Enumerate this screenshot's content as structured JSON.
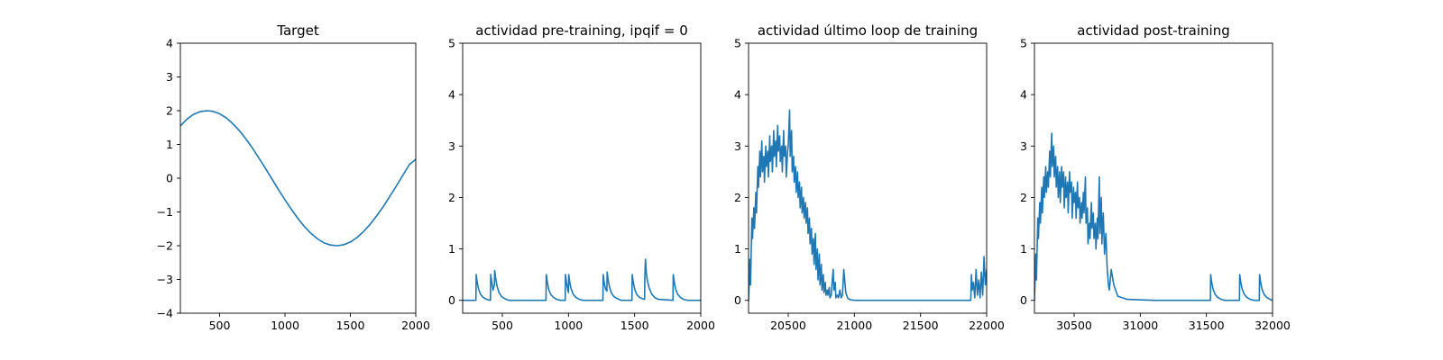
{
  "figure": {
    "background": "#ffffff",
    "line_color": "#1f77b4"
  },
  "chart_data": [
    {
      "type": "line",
      "title": "Target",
      "xlabel": "",
      "ylabel": "",
      "xlim": [
        200,
        2000
      ],
      "ylim": [
        -4,
        4
      ],
      "xticks": [
        500,
        1000,
        1500,
        2000
      ],
      "yticks": [
        -4,
        -3,
        -2,
        -1,
        0,
        1,
        2,
        3,
        4
      ],
      "grid": false,
      "series": [
        {
          "x": [
            200,
            250,
            300,
            350,
            400,
            450,
            500,
            550,
            600,
            650,
            700,
            750,
            800,
            850,
            900,
            950,
            1000,
            1050,
            1100,
            1150,
            1200,
            1250,
            1300,
            1350,
            1400,
            1450,
            1500,
            1550,
            1600,
            1650,
            1700,
            1750,
            1800,
            1850,
            1900,
            1950,
            2000
          ],
          "y": [
            1.55,
            1.75,
            1.89,
            1.97,
            2.0,
            1.98,
            1.91,
            1.79,
            1.62,
            1.41,
            1.17,
            0.9,
            0.6,
            0.29,
            -0.02,
            -0.34,
            -0.64,
            -0.93,
            -1.2,
            -1.44,
            -1.64,
            -1.8,
            -1.92,
            -1.98,
            -2.0,
            -1.97,
            -1.89,
            -1.76,
            -1.58,
            -1.37,
            -1.12,
            -0.85,
            -0.55,
            -0.24,
            0.08,
            0.4,
            0.56
          ]
        }
      ]
    },
    {
      "type": "line",
      "title": "actividad pre-training, ipqif = 0",
      "xlabel": "",
      "ylabel": "",
      "xlim": [
        200,
        2000
      ],
      "ylim": [
        -0.25,
        5
      ],
      "xticks": [
        500,
        1000,
        1500,
        2000
      ],
      "yticks": [
        0,
        1,
        2,
        3,
        4,
        5
      ],
      "grid": false,
      "series": [
        {
          "x": [
            200,
            300,
            302,
            310,
            320,
            335,
            355,
            380,
            410,
            412,
            420,
            430,
            440,
            442,
            450,
            460,
            475,
            495,
            520,
            550,
            830,
            832,
            840,
            850,
            865,
            885,
            910,
            940,
            975,
            977,
            985,
            995,
            1000,
            1002,
            1010,
            1020,
            1035,
            1055,
            1080,
            1110,
            1260,
            1262,
            1270,
            1280,
            1290,
            1292,
            1300,
            1310,
            1325,
            1345,
            1370,
            1400,
            1480,
            1482,
            1490,
            1500,
            1515,
            1535,
            1560,
            1575,
            1577,
            1582,
            1588,
            1595,
            1610,
            1630,
            1655,
            1680,
            1790,
            1792,
            1800,
            1810,
            1825,
            1845,
            1870,
            1900,
            2000
          ],
          "y": [
            0,
            0,
            0.5,
            0.35,
            0.22,
            0.12,
            0.06,
            0.02,
            0,
            0.5,
            0.35,
            0.2,
            0.3,
            0.58,
            0.42,
            0.28,
            0.15,
            0.07,
            0.03,
            0,
            0,
            0.5,
            0.35,
            0.22,
            0.12,
            0.06,
            0.02,
            0,
            0,
            0.5,
            0.35,
            0.2,
            0.15,
            0.5,
            0.35,
            0.22,
            0.12,
            0.06,
            0.02,
            0,
            0,
            0.5,
            0.35,
            0.22,
            0.18,
            0.55,
            0.4,
            0.26,
            0.14,
            0.07,
            0.03,
            0,
            0,
            0.5,
            0.35,
            0.22,
            0.12,
            0.06,
            0.03,
            0.02,
            0.45,
            0.8,
            0.55,
            0.4,
            0.24,
            0.12,
            0.05,
            0.02,
            0,
            0.5,
            0.35,
            0.22,
            0.12,
            0.06,
            0.02,
            0,
            0
          ]
        }
      ]
    },
    {
      "type": "line",
      "title": "actividad último loop de training",
      "xlabel": "",
      "ylabel": "",
      "xlim": [
        20200,
        22000
      ],
      "ylim": [
        -0.25,
        5
      ],
      "xticks": [
        20500,
        21000,
        21500,
        22000
      ],
      "yticks": [
        0,
        1,
        2,
        3,
        4,
        5
      ],
      "grid": false,
      "series": [
        {
          "x": [
            20200,
            20210,
            20215,
            20225,
            20230,
            20240,
            20245,
            20255,
            20260,
            20270,
            20275,
            20285,
            20290,
            20300,
            20305,
            20315,
            20320,
            20330,
            20335,
            20345,
            20350,
            20360,
            20365,
            20375,
            20380,
            20390,
            20395,
            20405,
            20410,
            20420,
            20425,
            20435,
            20440,
            20450,
            20455,
            20465,
            20470,
            20480,
            20485,
            20495,
            20500,
            20510,
            20515,
            20525,
            20530,
            20540,
            20545,
            20555,
            20560,
            20570,
            20575,
            20585,
            20590,
            20600,
            20605,
            20615,
            20620,
            20630,
            20635,
            20645,
            20650,
            20660,
            20665,
            20675,
            20680,
            20690,
            20695,
            20705,
            20710,
            20720,
            20725,
            20735,
            20740,
            20750,
            20755,
            20765,
            20770,
            20780,
            20785,
            20795,
            20800,
            20810,
            20815,
            20825,
            20830,
            20840,
            20845,
            20855,
            20860,
            20870,
            20880,
            20890,
            20900,
            20910,
            20920,
            20935,
            20950,
            20970,
            21000,
            21100,
            21300,
            21500,
            21700,
            21880,
            21885,
            21890,
            21900,
            21910,
            21920,
            21930,
            21940,
            21950,
            21960,
            21970,
            21980,
            21990,
            22000
          ],
          "y": [
            0,
            0.8,
            0.3,
            1.6,
            1.2,
            1.8,
            1.4,
            2.1,
            1.7,
            2.6,
            2.2,
            2.9,
            2.4,
            3.1,
            2.5,
            2.8,
            2.3,
            3.0,
            2.6,
            2.9,
            2.4,
            3.2,
            2.7,
            3.0,
            2.5,
            3.3,
            2.8,
            3.1,
            2.6,
            3.4,
            2.9,
            3.2,
            2.7,
            3.0,
            2.5,
            3.3,
            2.8,
            3.0,
            2.4,
            2.9,
            3.0,
            3.7,
            2.8,
            3.3,
            2.5,
            2.8,
            2.3,
            2.6,
            2.1,
            2.5,
            2.0,
            2.3,
            1.8,
            2.2,
            1.7,
            2.0,
            1.6,
            1.9,
            1.5,
            1.8,
            1.3,
            1.6,
            1.1,
            1.4,
            0.9,
            1.2,
            0.7,
            1.3,
            0.6,
            1.0,
            0.4,
            0.9,
            0.3,
            0.7,
            0.2,
            0.5,
            0.15,
            0.35,
            0.1,
            0.2,
            0.1,
            0.25,
            0.05,
            0.1,
            0.3,
            0.6,
            0.2,
            0.35,
            0.05,
            0.1,
            0.05,
            0.2,
            0.05,
            0.1,
            0.6,
            0.15,
            0.04,
            0.01,
            0,
            0,
            0,
            0,
            0,
            0,
            0.5,
            0.2,
            0.35,
            0.05,
            0.6,
            0.1,
            0.4,
            0.05,
            0.55,
            0.1,
            0.85,
            0.3,
            0.6
          ]
        }
      ]
    },
    {
      "type": "line",
      "title": "actividad post-training",
      "xlabel": "",
      "ylabel": "",
      "xlim": [
        30200,
        32000
      ],
      "ylim": [
        -0.25,
        5
      ],
      "xticks": [
        30500,
        31000,
        31500,
        32000
      ],
      "yticks": [
        0,
        1,
        2,
        3,
        4,
        5
      ],
      "grid": false,
      "series": [
        {
          "x": [
            30200,
            30210,
            30215,
            30225,
            30230,
            30240,
            30245,
            30255,
            30260,
            30270,
            30275,
            30285,
            30290,
            30300,
            30305,
            30315,
            30320,
            30330,
            30335,
            30345,
            30350,
            30360,
            30365,
            30375,
            30380,
            30390,
            30395,
            30405,
            30410,
            30420,
            30425,
            30435,
            30440,
            30450,
            30455,
            30465,
            30470,
            30480,
            30485,
            30495,
            30500,
            30510,
            30515,
            30525,
            30530,
            30540,
            30545,
            30555,
            30560,
            30570,
            30575,
            30585,
            30590,
            30600,
            30605,
            30615,
            30620,
            30630,
            30635,
            30645,
            30650,
            30660,
            30665,
            30675,
            30680,
            30690,
            30695,
            30705,
            30710,
            30720,
            30730,
            30740,
            30750,
            30760,
            30765,
            30770,
            30780,
            30800,
            30830,
            30900,
            31100,
            31300,
            31530,
            31532,
            31540,
            31550,
            31565,
            31585,
            31610,
            31640,
            31750,
            31752,
            31760,
            31770,
            31785,
            31805,
            31830,
            31860,
            31900,
            31902,
            31910,
            31920,
            31935,
            31955,
            31980,
            32000
          ],
          "y": [
            0,
            0.9,
            0.4,
            1.6,
            1.2,
            1.9,
            1.5,
            2.2,
            1.7,
            2.4,
            2.0,
            2.6,
            2.1,
            2.5,
            2.2,
            2.9,
            2.4,
            3.25,
            2.6,
            3.0,
            2.4,
            2.8,
            2.2,
            2.6,
            2.0,
            2.5,
            1.9,
            2.6,
            2.2,
            2.5,
            1.8,
            2.4,
            2.0,
            2.3,
            1.7,
            2.5,
            2.1,
            2.3,
            1.6,
            2.2,
            1.9,
            2.1,
            1.6,
            2.3,
            1.8,
            2.0,
            1.5,
            1.9,
            1.6,
            2.1,
            1.7,
            2.4,
            1.5,
            1.8,
            1.1,
            1.5,
            1.2,
            1.9,
            1.4,
            1.7,
            1.2,
            1.5,
            1.0,
            1.6,
            1.2,
            2.4,
            1.3,
            2.0,
            1.1,
            1.7,
            0.9,
            1.3,
            0.6,
            0.3,
            0.2,
            0.3,
            0.6,
            0.3,
            0.08,
            0.02,
            0,
            0,
            0,
            0.5,
            0.35,
            0.22,
            0.12,
            0.06,
            0.02,
            0,
            0,
            0.5,
            0.35,
            0.22,
            0.12,
            0.06,
            0.02,
            0,
            0,
            0.5,
            0.35,
            0.22,
            0.12,
            0.06,
            0.02,
            0
          ]
        }
      ]
    }
  ]
}
